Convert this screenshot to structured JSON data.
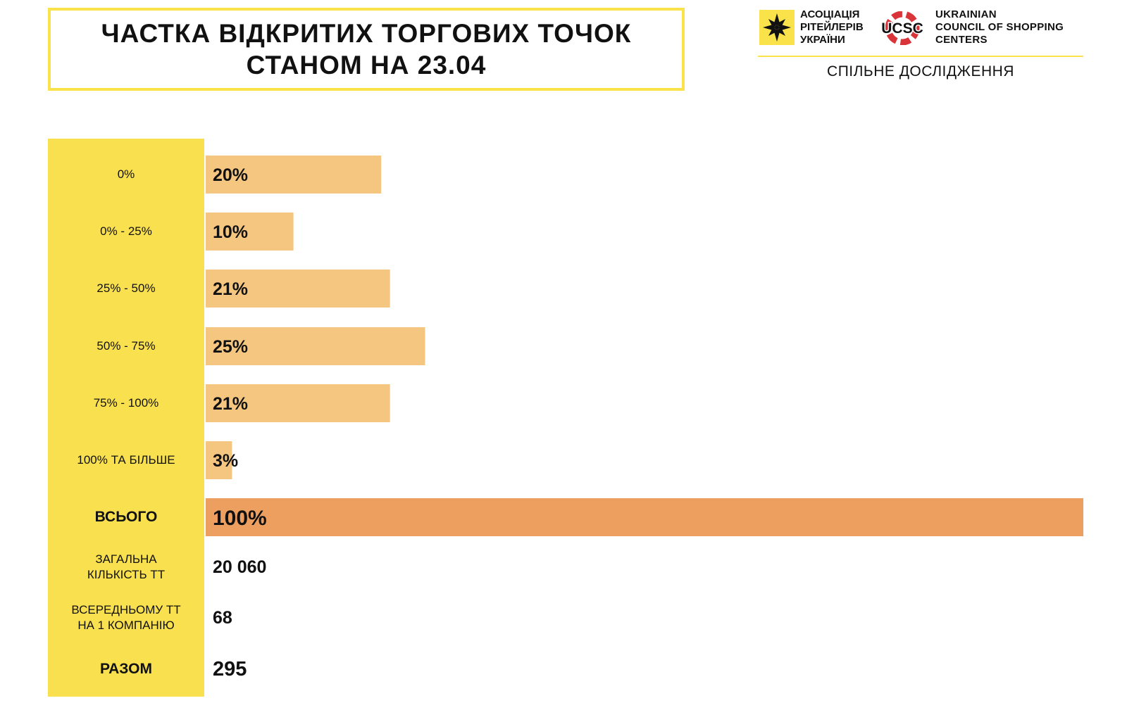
{
  "header": {
    "title_line1": "ЧАСТКА ВІДКРИТИХ ТОРГОВИХ ТОЧОК",
    "title_line2": "СТАНОМ НА 23.04"
  },
  "logos": {
    "association": "АСОЦІАЦІЯ\nРІТЕЙЛЕРІВ\nУКРАЇНИ",
    "ucsc_mark": "UCSC",
    "ucsc_name": "UKRAINIAN\nCOUNCIL OF SHOPPING\nCENTERS",
    "joint_study": "СПІЛЬНЕ ДОСЛІДЖЕННЯ"
  },
  "colors": {
    "label_column": "#f9e04e",
    "bar": "#f5c67f",
    "bar_total": "#ed9f5f",
    "title_border": "#f9e24a",
    "ucsc_red": "#d9343a"
  },
  "chart_data": {
    "type": "bar",
    "orientation": "horizontal",
    "categories": [
      "0%",
      "0% - 25%",
      "25% - 50%",
      "50% - 75%",
      "75% - 100%",
      "100% ТА БІЛЬШЕ",
      "ВСЬОГО"
    ],
    "values": [
      20,
      10,
      21,
      25,
      21,
      3,
      100
    ],
    "data_labels": [
      "20%",
      "10%",
      "21%",
      "25%",
      "21%",
      "3%",
      "100%"
    ],
    "value_unit": "%",
    "xlim": [
      0,
      100
    ],
    "grid": false,
    "legend": "none"
  },
  "summary": [
    {
      "label_lines": [
        "ЗАГАЛЬНА",
        "КІЛЬКІСТЬ ТТ"
      ],
      "value": "20 060"
    },
    {
      "label_lines": [
        "ВСЕРЕДНЬОМУ ТТ",
        "НА 1 КОМПАНІЮ"
      ],
      "value": "68"
    },
    {
      "label_lines": [
        "РАЗОМ"
      ],
      "value": "295"
    }
  ]
}
